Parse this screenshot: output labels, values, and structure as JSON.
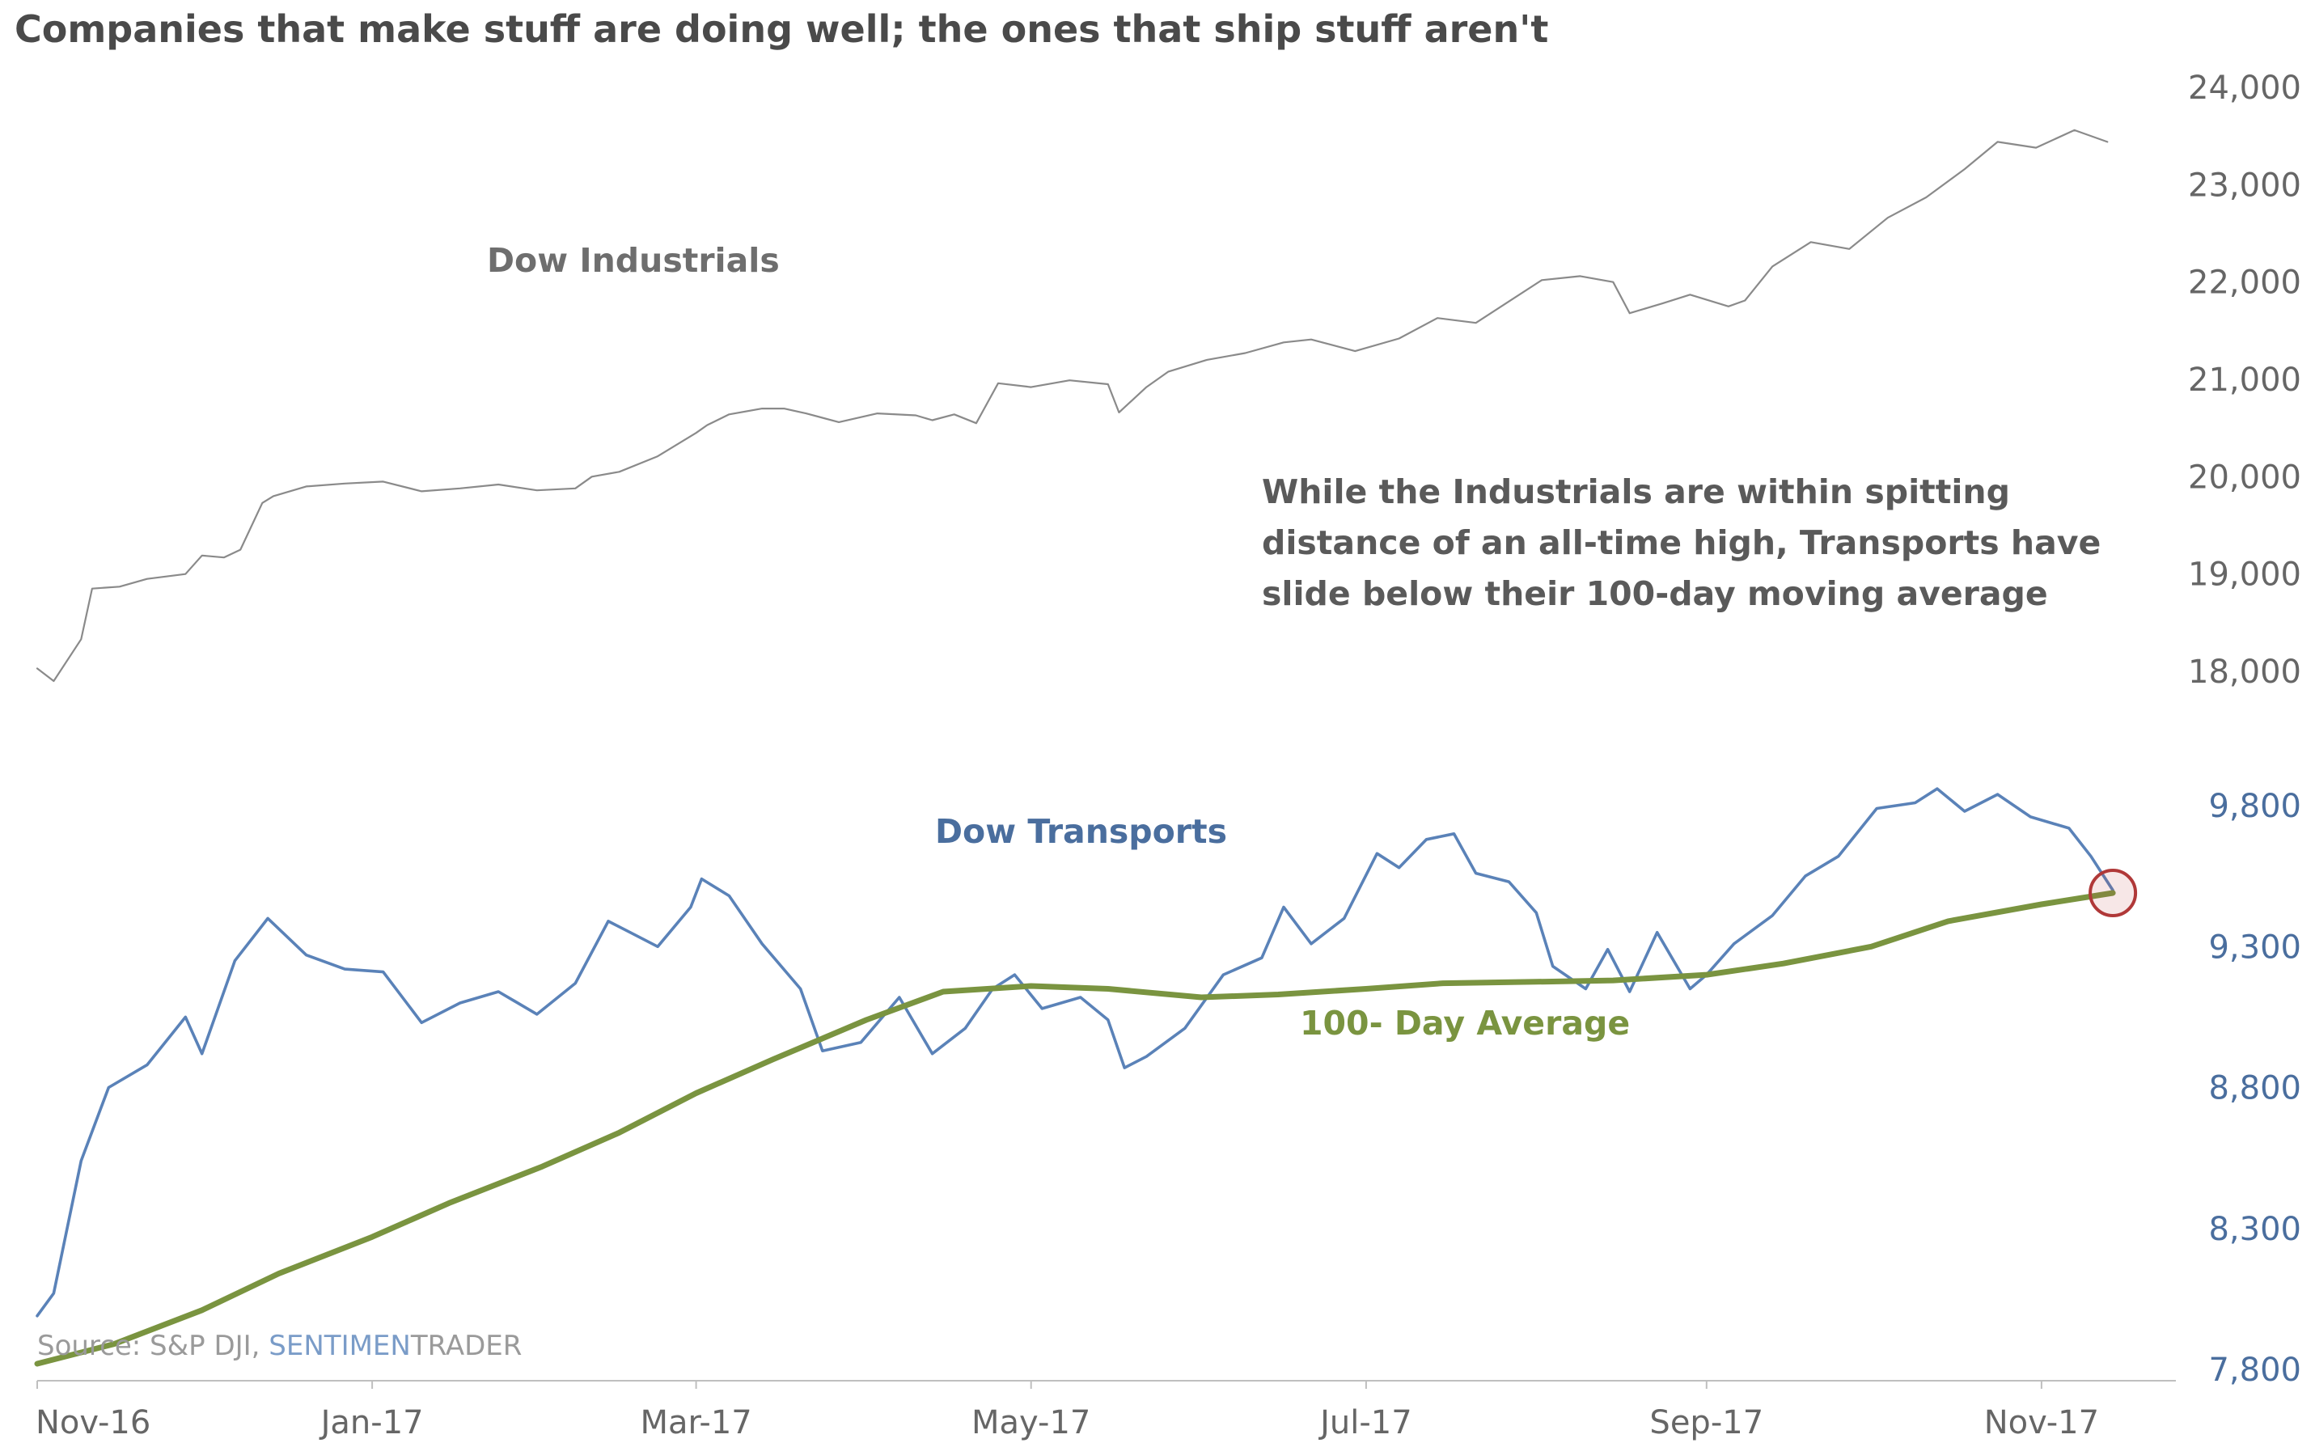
{
  "title": "Companies that make stuff are doing well; the ones that ship stuff aren't",
  "annotation": [
    "While the Industrials are within spitting",
    "distance of an all-time high, Transports have",
    "slide below their 100-day moving average"
  ],
  "labels": {
    "industrials": "Dow Industrials",
    "transports": "Dow Transports",
    "average": "100- Day Average"
  },
  "source": {
    "prefix": "Source: S&P DJI, ",
    "brand_a": "SENTIMEN",
    "brand_b": "TRADER"
  },
  "colors": {
    "industrials": "#8a8a8a",
    "transports": "#5a82b8",
    "average": "#7a9440",
    "title": "#4a4a4a",
    "axis_upper": "#666666",
    "axis_lower": "#4a6e9e",
    "highlight": "#b03838"
  },
  "chart_data": {
    "type": "line",
    "title": "Companies that make stuff are doing well; the ones that ship stuff aren't",
    "x_axis": {
      "type": "date",
      "range": [
        "2016-11-01",
        "2017-11-24"
      ],
      "tick_dates": [
        "2016-11-01",
        "2017-01-01",
        "2017-03-01",
        "2017-05-01",
        "2017-07-01",
        "2017-09-01",
        "2017-11-01"
      ],
      "tick_labels": [
        "Nov-16",
        "Jan-17",
        "Mar-17",
        "May-17",
        "Jul-17",
        "Sep-17",
        "Nov-17"
      ]
    },
    "panels": [
      {
        "name": "Dow Industrials",
        "y_axis": {
          "side": "right",
          "range": [
            18000,
            24000
          ],
          "ticks": [
            18000,
            19000,
            20000,
            21000,
            22000,
            23000,
            24000
          ],
          "tick_labels": [
            "18,000",
            "19,000",
            "20,000",
            "21,000",
            "22,000",
            "23,000",
            "24,000"
          ]
        },
        "series": [
          {
            "name": "Dow Industrials",
            "points": [
              [
                "2016-11-01",
                18030
              ],
              [
                "2016-11-04",
                17900
              ],
              [
                "2016-11-09",
                18330
              ],
              [
                "2016-11-11",
                18850
              ],
              [
                "2016-11-16",
                18870
              ],
              [
                "2016-11-21",
                18950
              ],
              [
                "2016-11-28",
                19000
              ],
              [
                "2016-12-01",
                19190
              ],
              [
                "2016-12-05",
                19170
              ],
              [
                "2016-12-08",
                19250
              ],
              [
                "2016-12-12",
                19730
              ],
              [
                "2016-12-14",
                19800
              ],
              [
                "2016-12-20",
                19900
              ],
              [
                "2016-12-27",
                19930
              ],
              [
                "2017-01-03",
                19950
              ],
              [
                "2017-01-10",
                19850
              ],
              [
                "2017-01-17",
                19880
              ],
              [
                "2017-01-24",
                19920
              ],
              [
                "2017-01-31",
                19860
              ],
              [
                "2017-02-07",
                19880
              ],
              [
                "2017-02-10",
                20000
              ],
              [
                "2017-02-15",
                20050
              ],
              [
                "2017-02-22",
                20210
              ],
              [
                "2017-03-01",
                20450
              ],
              [
                "2017-03-03",
                20530
              ],
              [
                "2017-03-07",
                20640
              ],
              [
                "2017-03-13",
                20700
              ],
              [
                "2017-03-17",
                20700
              ],
              [
                "2017-03-21",
                20650
              ],
              [
                "2017-03-27",
                20560
              ],
              [
                "2017-04-03",
                20650
              ],
              [
                "2017-04-10",
                20630
              ],
              [
                "2017-04-13",
                20580
              ],
              [
                "2017-04-17",
                20640
              ],
              [
                "2017-04-21",
                20550
              ],
              [
                "2017-04-25",
                20960
              ],
              [
                "2017-05-01",
                20920
              ],
              [
                "2017-05-08",
                20990
              ],
              [
                "2017-05-15",
                20950
              ],
              [
                "2017-05-17",
                20660
              ],
              [
                "2017-05-22",
                20920
              ],
              [
                "2017-05-26",
                21080
              ],
              [
                "2017-06-02",
                21200
              ],
              [
                "2017-06-09",
                21270
              ],
              [
                "2017-06-16",
                21380
              ],
              [
                "2017-06-21",
                21410
              ],
              [
                "2017-06-29",
                21290
              ],
              [
                "2017-07-07",
                21420
              ],
              [
                "2017-07-14",
                21630
              ],
              [
                "2017-07-21",
                21580
              ],
              [
                "2017-07-27",
                21800
              ],
              [
                "2017-08-02",
                22020
              ],
              [
                "2017-08-09",
                22060
              ],
              [
                "2017-08-15",
                22000
              ],
              [
                "2017-08-18",
                21680
              ],
              [
                "2017-08-24",
                21780
              ],
              [
                "2017-08-29",
                21870
              ],
              [
                "2017-09-05",
                21750
              ],
              [
                "2017-09-08",
                21810
              ],
              [
                "2017-09-13",
                22160
              ],
              [
                "2017-09-20",
                22410
              ],
              [
                "2017-09-27",
                22340
              ],
              [
                "2017-10-04",
                22660
              ],
              [
                "2017-10-11",
                22870
              ],
              [
                "2017-10-18",
                23160
              ],
              [
                "2017-10-24",
                23440
              ],
              [
                "2017-10-31",
                23380
              ],
              [
                "2017-11-07",
                23560
              ],
              [
                "2017-11-13",
                23440
              ]
            ]
          }
        ]
      },
      {
        "name": "Dow Transports",
        "y_axis": {
          "side": "right",
          "range": [
            7800,
            9800
          ],
          "ticks": [
            7800,
            8300,
            8800,
            9300,
            9800
          ],
          "tick_labels": [
            "7,800",
            "8,300",
            "8,800",
            "9,300",
            "9,800"
          ]
        },
        "series": [
          {
            "name": "Dow Transports",
            "points": [
              [
                "2016-11-01",
                7990
              ],
              [
                "2016-11-04",
                8070
              ],
              [
                "2016-11-09",
                8540
              ],
              [
                "2016-11-14",
                8800
              ],
              [
                "2016-11-21",
                8880
              ],
              [
                "2016-11-28",
                9050
              ],
              [
                "2016-12-01",
                8920
              ],
              [
                "2016-12-07",
                9250
              ],
              [
                "2016-12-13",
                9400
              ],
              [
                "2016-12-20",
                9270
              ],
              [
                "2016-12-27",
                9220
              ],
              [
                "2017-01-03",
                9210
              ],
              [
                "2017-01-10",
                9030
              ],
              [
                "2017-01-17",
                9100
              ],
              [
                "2017-01-24",
                9140
              ],
              [
                "2017-01-31",
                9060
              ],
              [
                "2017-02-07",
                9170
              ],
              [
                "2017-02-13",
                9390
              ],
              [
                "2017-02-17",
                9350
              ],
              [
                "2017-02-22",
                9300
              ],
              [
                "2017-02-28",
                9440
              ],
              [
                "2017-03-02",
                9540
              ],
              [
                "2017-03-07",
                9480
              ],
              [
                "2017-03-13",
                9310
              ],
              [
                "2017-03-20",
                9150
              ],
              [
                "2017-03-24",
                8930
              ],
              [
                "2017-03-31",
                8960
              ],
              [
                "2017-04-07",
                9120
              ],
              [
                "2017-04-13",
                8920
              ],
              [
                "2017-04-19",
                9010
              ],
              [
                "2017-04-24",
                9150
              ],
              [
                "2017-04-28",
                9200
              ],
              [
                "2017-05-03",
                9080
              ],
              [
                "2017-05-10",
                9120
              ],
              [
                "2017-05-15",
                9040
              ],
              [
                "2017-05-18",
                8870
              ],
              [
                "2017-05-22",
                8910
              ],
              [
                "2017-05-29",
                9010
              ],
              [
                "2017-06-05",
                9200
              ],
              [
                "2017-06-12",
                9260
              ],
              [
                "2017-06-16",
                9440
              ],
              [
                "2017-06-21",
                9310
              ],
              [
                "2017-06-27",
                9400
              ],
              [
                "2017-07-03",
                9630
              ],
              [
                "2017-07-07",
                9580
              ],
              [
                "2017-07-12",
                9680
              ],
              [
                "2017-07-17",
                9700
              ],
              [
                "2017-07-21",
                9560
              ],
              [
                "2017-07-27",
                9530
              ],
              [
                "2017-08-01",
                9420
              ],
              [
                "2017-08-04",
                9230
              ],
              [
                "2017-08-10",
                9150
              ],
              [
                "2017-08-14",
                9290
              ],
              [
                "2017-08-18",
                9140
              ],
              [
                "2017-08-23",
                9350
              ],
              [
                "2017-08-29",
                9150
              ],
              [
                "2017-09-01",
                9200
              ],
              [
                "2017-09-06",
                9310
              ],
              [
                "2017-09-13",
                9410
              ],
              [
                "2017-09-19",
                9550
              ],
              [
                "2017-09-25",
                9620
              ],
              [
                "2017-10-02",
                9790
              ],
              [
                "2017-10-09",
                9810
              ],
              [
                "2017-10-13",
                9860
              ],
              [
                "2017-10-18",
                9780
              ],
              [
                "2017-10-24",
                9840
              ],
              [
                "2017-10-30",
                9760
              ],
              [
                "2017-11-06",
                9720
              ],
              [
                "2017-11-10",
                9620
              ],
              [
                "2017-11-14",
                9500
              ]
            ]
          },
          {
            "name": "100- Day Average",
            "points": [
              [
                "2016-11-01",
                7820
              ],
              [
                "2016-11-15",
                7890
              ],
              [
                "2016-12-01",
                8010
              ],
              [
                "2016-12-15",
                8140
              ],
              [
                "2017-01-01",
                8270
              ],
              [
                "2017-01-15",
                8390
              ],
              [
                "2017-02-01",
                8520
              ],
              [
                "2017-02-15",
                8640
              ],
              [
                "2017-03-01",
                8780
              ],
              [
                "2017-03-15",
                8900
              ],
              [
                "2017-04-01",
                9040
              ],
              [
                "2017-04-15",
                9140
              ],
              [
                "2017-05-01",
                9160
              ],
              [
                "2017-05-15",
                9150
              ],
              [
                "2017-06-01",
                9120
              ],
              [
                "2017-06-15",
                9130
              ],
              [
                "2017-07-01",
                9150
              ],
              [
                "2017-07-15",
                9170
              ],
              [
                "2017-08-01",
                9175
              ],
              [
                "2017-08-15",
                9180
              ],
              [
                "2017-09-01",
                9200
              ],
              [
                "2017-09-15",
                9240
              ],
              [
                "2017-10-01",
                9300
              ],
              [
                "2017-10-15",
                9390
              ],
              [
                "2017-11-01",
                9450
              ],
              [
                "2017-11-14",
                9490
              ]
            ]
          }
        ]
      }
    ],
    "legend": "none (inline labels)",
    "grid": false
  }
}
